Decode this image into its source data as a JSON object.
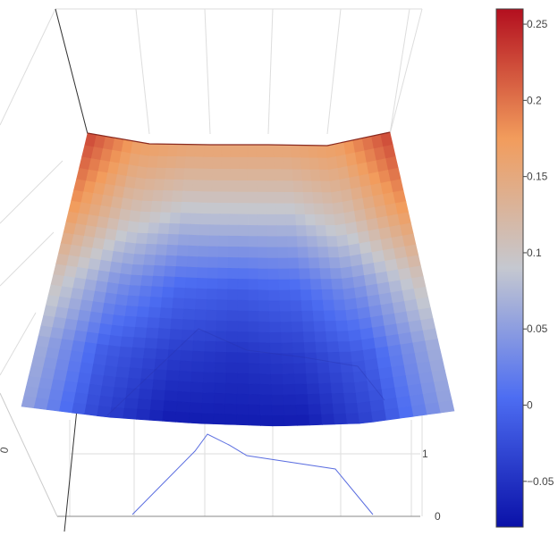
{
  "chart_data": {
    "type": "surface",
    "title": "",
    "xlabel": "",
    "ylabel": "",
    "zlabel": "",
    "colorscale": [
      [
        0.0,
        "#0a11a8"
      ],
      [
        0.25,
        "#4d6df2"
      ],
      [
        0.5,
        "#c5c8d0"
      ],
      [
        0.75,
        "#f29c5c"
      ],
      [
        1.0,
        "#b30f1f"
      ]
    ],
    "colorbar": {
      "range": [
        -0.08,
        0.26
      ],
      "ticks": [
        -0.05,
        0,
        0.05,
        0.1,
        0.15,
        0.2,
        0.25
      ],
      "tick_labels": [
        "−0.05",
        "0",
        "0.05",
        "0.1",
        "0.15",
        "0.2",
        "0.25"
      ]
    },
    "z_grid": [
      [
        0.23,
        0.17,
        0.16,
        0.16,
        0.16,
        0.17,
        0.23
      ],
      [
        0.18,
        0.11,
        0.08,
        0.08,
        0.08,
        0.11,
        0.18
      ],
      [
        0.11,
        0.04,
        0.0,
        -0.01,
        0.0,
        0.04,
        0.11
      ],
      [
        0.07,
        -0.01,
        -0.04,
        -0.05,
        -0.04,
        -0.01,
        0.07
      ],
      [
        0.06,
        -0.03,
        -0.07,
        -0.07,
        -0.07,
        -0.03,
        0.06
      ]
    ],
    "axis_tick_labels": {
      "left": [
        "0"
      ],
      "right": [
        "1",
        "0"
      ]
    },
    "grid": true
  }
}
